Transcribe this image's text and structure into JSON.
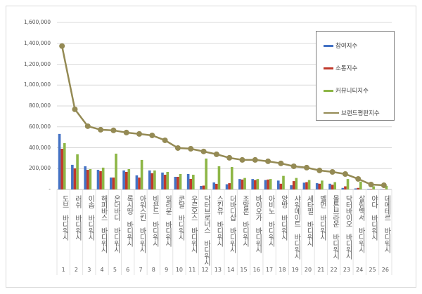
{
  "chart_data": {
    "type": "bar",
    "title": "",
    "xlabel": "",
    "ylabel": "",
    "ylim": [
      0,
      1600000
    ],
    "yticks": [
      "-",
      "200,000",
      "400,000",
      "600,000",
      "800,000",
      "1,000,000",
      "1,200,000",
      "1,400,000",
      "1,600,000"
    ],
    "grid": true,
    "legend_position": "top-right",
    "numbers": [
      "1",
      "2",
      "3",
      "4",
      "5",
      "6",
      "7",
      "8",
      "9",
      "10",
      "11",
      "12",
      "13",
      "14",
      "15",
      "16",
      "17",
      "18",
      "19",
      "20",
      "21",
      "22",
      "23",
      "24",
      "25",
      "26"
    ],
    "categories": [
      "도브 바디워시",
      "러쉬 바디워시",
      "이솝 바디워시",
      "해피바스 바디워시",
      "온더바디 바디워시",
      "록시땅 바디워시",
      "아워스킨 바디워시",
      "비욘드 바디워시",
      "일리윤 바디워시",
      "쿤달 바디워시",
      "우르오스 바디워시",
      "닥터브로너스 바디워시",
      "스킨유 바디워시",
      "더바디샵 바디워시",
      "조말론 바디워시",
      "바이오가 바디워시",
      "아비노 바디워시",
      "앙방 바디워시",
      "샤워메이트 바디워시",
      "세타필 바디워시",
      "벨먼 바디워시",
      "몰튼브라운 바디워시",
      "닥터바이오 바디워시",
      "살림백서 바디워시",
      "야다 바디워시",
      "데메테르 바디워시"
    ],
    "series": [
      {
        "name": "참여지수",
        "type": "bar",
        "color": "#4472c4",
        "values": [
          532000,
          236000,
          222000,
          188000,
          114000,
          182000,
          135000,
          182000,
          162000,
          121000,
          148000,
          34000,
          67000,
          50000,
          100000,
          100000,
          90000,
          85000,
          40000,
          65000,
          60000,
          55000,
          15000,
          10000,
          5000,
          3000
        ]
      },
      {
        "name": "소통지수",
        "type": "bar",
        "color": "#c0392b",
        "values": [
          390000,
          202000,
          188000,
          175000,
          114000,
          168000,
          114000,
          155000,
          141000,
          121000,
          101000,
          37000,
          54000,
          60000,
          95000,
          90000,
          95000,
          55000,
          80000,
          70000,
          55000,
          45000,
          30000,
          15000,
          5000,
          3000
        ]
      },
      {
        "name": "커뮤니티지수",
        "type": "bar",
        "color": "#8db646",
        "values": [
          444000,
          337000,
          195000,
          209000,
          343000,
          195000,
          283000,
          182000,
          168000,
          148000,
          141000,
          296000,
          222000,
          215000,
          110000,
          100000,
          100000,
          130000,
          110000,
          90000,
          85000,
          70000,
          100000,
          75000,
          30000,
          35000
        ]
      },
      {
        "name": "브랜드평판지수",
        "type": "line",
        "color": "#948a54",
        "values": [
          1374000,
          768000,
          606000,
          572000,
          566000,
          545000,
          532000,
          518000,
          471000,
          397000,
          390000,
          364000,
          337000,
          303000,
          283000,
          283000,
          270000,
          250000,
          222000,
          209000,
          182000,
          168000,
          148000,
          101000,
          47000,
          40000
        ]
      }
    ]
  }
}
